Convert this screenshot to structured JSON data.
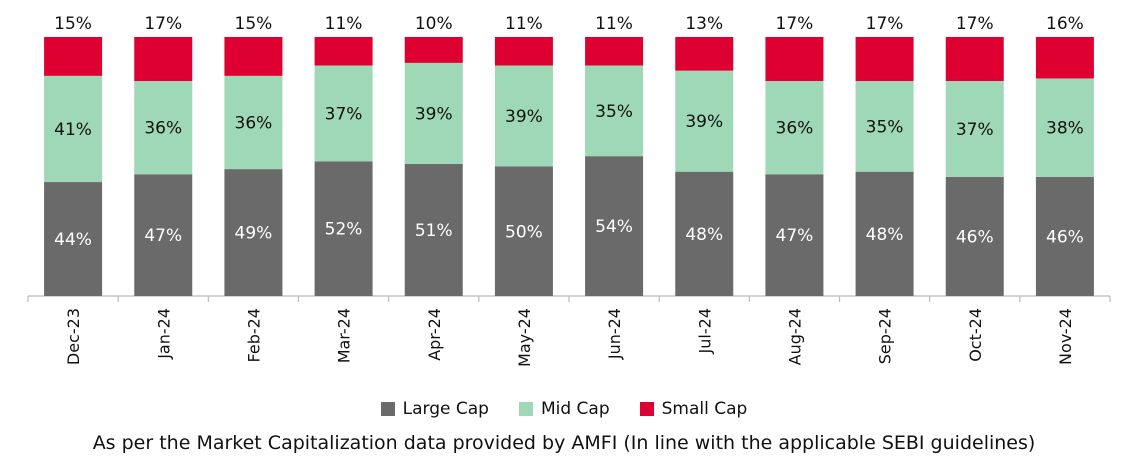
{
  "chart_data": {
    "type": "bar",
    "stacked": true,
    "categories": [
      "Dec-23",
      "Jan-24",
      "Feb-24",
      "Mar-24",
      "Apr-24",
      "May-24",
      "Jun-24",
      "Jul-24",
      "Aug-24",
      "Sep-24",
      "Oct-24",
      "Nov-24"
    ],
    "series": [
      {
        "name": "Large Cap",
        "color": "#6a6a6a",
        "label_color": "#ffffff",
        "values": [
          44,
          47,
          49,
          52,
          51,
          50,
          54,
          48,
          47,
          48,
          46,
          46
        ],
        "labels": [
          "44%",
          "47%",
          "49%",
          "52%",
          "51%",
          "50%",
          "54%",
          "48%",
          "47%",
          "48%",
          "46%",
          "46%"
        ]
      },
      {
        "name": "Mid Cap",
        "color": "#9fd8b6",
        "label_color": "#111111",
        "values": [
          41,
          36,
          36,
          37,
          39,
          39,
          35,
          39,
          36,
          35,
          37,
          38
        ],
        "labels": [
          "41%",
          "36%",
          "36%",
          "37%",
          "39%",
          "39%",
          "35%",
          "39%",
          "36%",
          "35%",
          "37%",
          "38%"
        ]
      },
      {
        "name": "Small Cap",
        "color": "#de0031",
        "label_color": "#111111",
        "values": [
          15,
          17,
          15,
          11,
          10,
          11,
          11,
          13,
          17,
          17,
          17,
          16
        ],
        "labels": [
          "15%",
          "17%",
          "15%",
          "11%",
          "10%",
          "11%",
          "11%",
          "13%",
          "17%",
          "17%",
          "17%",
          "16%"
        ]
      }
    ],
    "ylim": [
      0,
      100
    ],
    "grid": false,
    "legend_position": "bottom"
  },
  "footnote": "As per the Market Capitalization data provided by AMFI (In line with the applicable SEBI guidelines)"
}
